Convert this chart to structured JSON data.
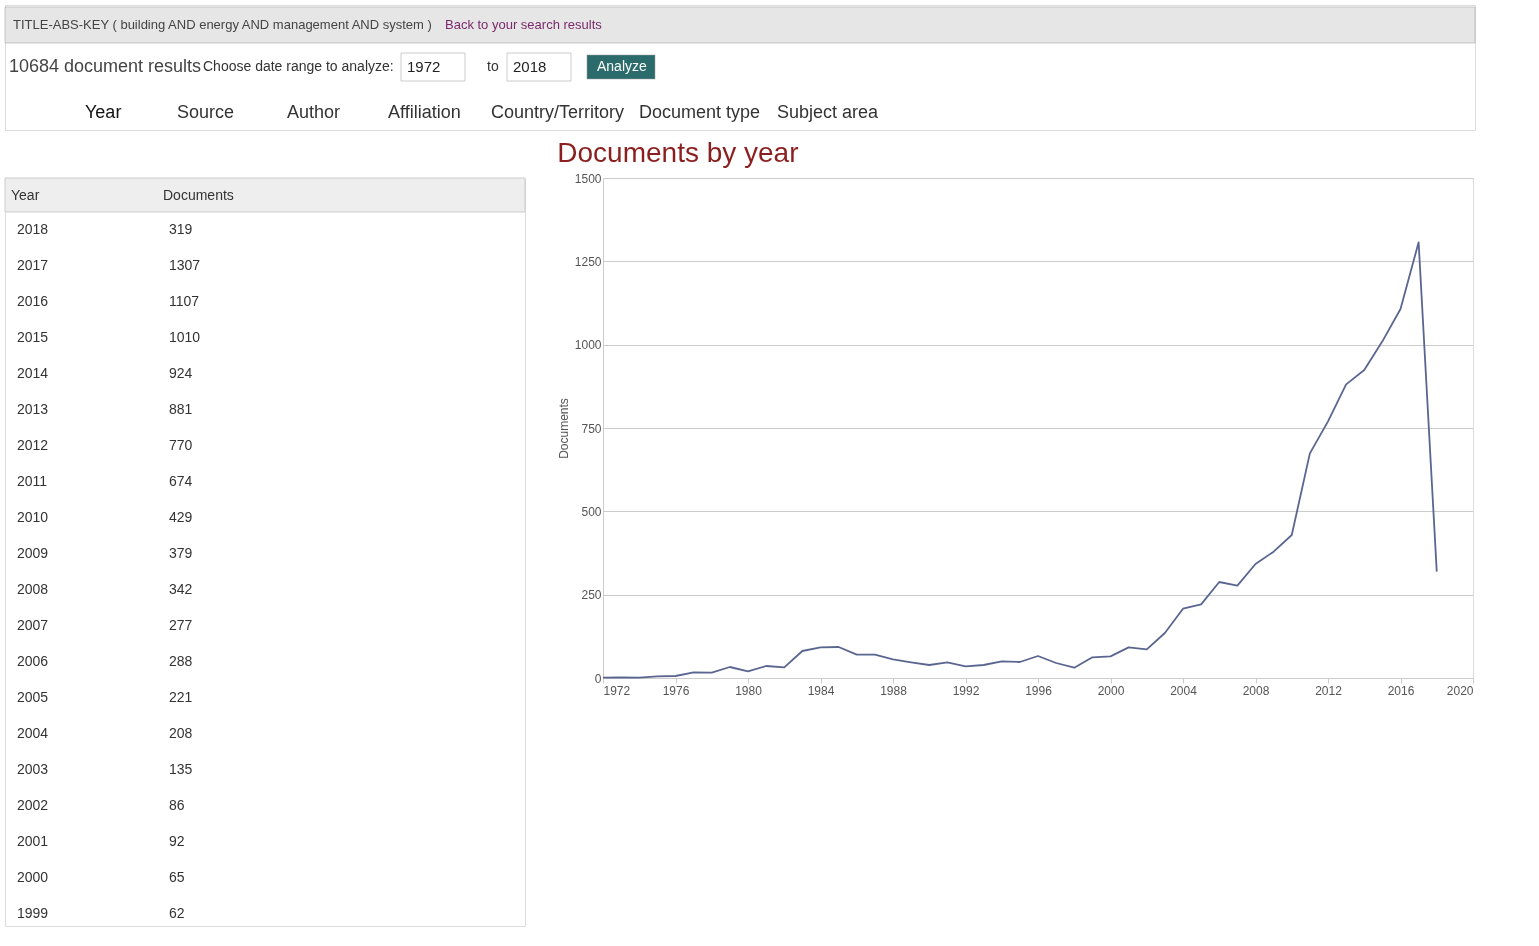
{
  "chart_data": {
    "type": "line",
    "title": "Documents by year",
    "ylabel": "Documents",
    "x": [
      1972,
      1973,
      1974,
      1975,
      1976,
      1977,
      1978,
      1979,
      1980,
      1981,
      1982,
      1983,
      1984,
      1985,
      1986,
      1987,
      1988,
      1989,
      1990,
      1991,
      1992,
      1993,
      1994,
      1995,
      1996,
      1997,
      1998,
      1999,
      2000,
      2001,
      2002,
      2003,
      2004,
      2005,
      2006,
      2007,
      2008,
      2009,
      2010,
      2011,
      2012,
      2013,
      2014,
      2015,
      2016,
      2017,
      2018
    ],
    "series": [
      {
        "color": "#5a6690",
        "values": [
          1,
          2,
          1,
          5,
          6,
          17,
          16,
          33,
          20,
          36,
          32,
          81,
          92,
          93,
          70,
          70,
          56,
          47,
          39,
          47,
          35,
          39,
          50,
          48,
          66,
          45,
          31,
          62,
          65,
          92,
          86,
          135,
          208,
          221,
          288,
          277,
          342,
          379,
          429,
          674,
          770,
          881,
          924,
          1010,
          1107,
          1307,
          319
        ]
      }
    ],
    "xlim": [
      1972,
      2020
    ],
    "xticks": [
      1972,
      1976,
      1980,
      1984,
      1988,
      1992,
      1996,
      2000,
      2004,
      2008,
      2012,
      2016,
      2020
    ],
    "ylim": [
      0,
      1500
    ],
    "yticks": [
      0,
      250,
      500,
      750,
      1000,
      1250,
      1500
    ],
    "grid": "y",
    "line_style": "solid",
    "annotations": [
      "TITLE-ABS-KEY ( building AND energy AND management AND system )",
      "Back to your search results",
      "10684 document results",
      "Choose date range to analyze:",
      "1972",
      "to",
      "2018",
      "Analyze",
      "Year",
      "Source",
      "Author",
      "Affiliation",
      "Country/Territory",
      "Document type",
      "Subject area",
      "Year",
      "Documents",
      "2018",
      "319",
      "2017",
      "1307",
      "2016",
      "1107",
      "2015",
      "1010",
      "2014",
      "924",
      "2013",
      "881",
      "2012",
      "770",
      "2011",
      "674",
      "2010",
      "429",
      "2009",
      "379",
      "2008",
      "342",
      "2007",
      "277",
      "2006",
      "288",
      "2005",
      "221",
      "2004",
      "208",
      "2003",
      "135",
      "2002",
      "86",
      "2001",
      "92",
      "2000",
      "65",
      "1999",
      "62"
    ]
  }
}
